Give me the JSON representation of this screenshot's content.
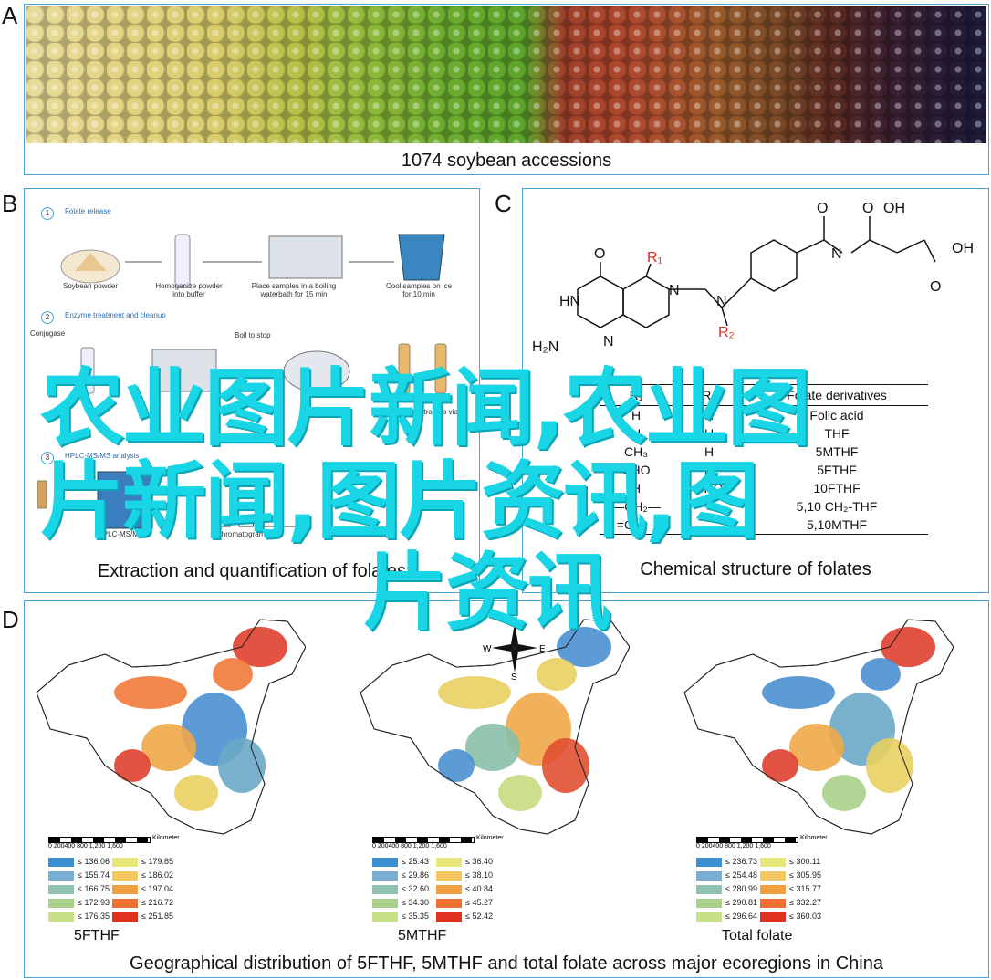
{
  "panels": {
    "a": {
      "letter": "A",
      "caption": "1074 soybean accessions"
    },
    "b": {
      "letter": "B",
      "caption": "Extraction and quantification of folates",
      "steps": [
        {
          "num": "1",
          "title": "Folate release"
        },
        {
          "num": "2",
          "title": "Enzyme treatment and cleanup"
        },
        {
          "num": "3",
          "title": "HPLC-MS/MS analysis"
        }
      ],
      "labels": {
        "soybean_powder": "Soybean powder",
        "homogenize": "Homogenize powder into buffer",
        "boiling": "Place samples in a boiling waterbath for 15 min",
        "cool": "Cool samples on ice for 10 min",
        "conjugase": "Conjugase",
        "boil_stop": "Boil to stop",
        "hplc": "HPLC-MS/MS",
        "chromatogram": "Chromatogram",
        "transfer": "Transfer filtrate to vial"
      }
    },
    "c": {
      "letter": "C",
      "caption": "Chemical structure of folates",
      "structure_labels": {
        "oh1": "OH",
        "oh2": "OH",
        "o1": "O",
        "o2": "O",
        "o3": "O",
        "o4": "O",
        "hn": "HN",
        "nh": "N",
        "h2n": "H₂N",
        "n1": "N",
        "n2": "N",
        "nH": "N",
        "h": "H",
        "r1": "R₁",
        "r2": "R₂",
        "n3": "N",
        "hN": "H"
      },
      "table": {
        "headers": [
          "R₁",
          "R₂",
          "Folate derivatives"
        ],
        "rows": [
          [
            "H",
            "H",
            "Folic acid"
          ],
          [
            "H",
            "H",
            "THF"
          ],
          [
            "CH₃",
            "H",
            "5MTHF"
          ],
          [
            "CHO",
            "H",
            "5FTHF"
          ],
          [
            "H",
            "CHO",
            "10FTHF"
          ],
          [
            "—CH₂—",
            "",
            "5,10 CH₂-THF"
          ],
          [
            "=CH—",
            "",
            "5,10MTHF"
          ]
        ]
      }
    },
    "d": {
      "letter": "D",
      "caption": "Geographical distribution of 5FTHF, 5MTHF and total folate across major ecoregions in China",
      "compass": {
        "n": "N",
        "s": "S",
        "e": "E",
        "w": "W"
      },
      "scale": {
        "ticks": "0  200400  800  1,200  1,600",
        "unit": "Kilometer"
      },
      "maps": [
        {
          "label": "5FTHF",
          "legend": [
            "≤ 136.06",
            "≤ 155.74",
            "≤ 166.75",
            "≤ 172.93",
            "≤ 176.35",
            "≤ 179.85",
            "≤ 186.02",
            "≤ 197.04",
            "≤ 216.72",
            "≤ 251.85"
          ]
        },
        {
          "label": "5MTHF",
          "legend": [
            "≤ 25.43",
            "≤ 29.86",
            "≤ 32.60",
            "≤ 34.30",
            "≤ 35.35",
            "≤ 36.40",
            "≤ 38.10",
            "≤ 40.84",
            "≤ 45.27",
            "≤ 52.42"
          ]
        },
        {
          "label": "Total folate",
          "legend": [
            "≤ 236.73",
            "≤ 254.48",
            "≤ 280.99",
            "≤ 290.81",
            "≤ 296.64",
            "≤ 300.11",
            "≤ 305.95",
            "≤ 315.77",
            "≤ 332.27",
            "≤ 360.03"
          ]
        }
      ],
      "legend_colors": [
        "#3c8fd0",
        "#7aaed0",
        "#8fc0b0",
        "#a8d08a",
        "#c8e08a",
        "#e8e87a",
        "#f4c860",
        "#f0a040",
        "#ec7030",
        "#e03020"
      ]
    }
  },
  "watermark": {
    "line1": "农业图片新闻,农业图",
    "line2": "片新闻,图片资讯,图",
    "line3": "片资讯"
  }
}
